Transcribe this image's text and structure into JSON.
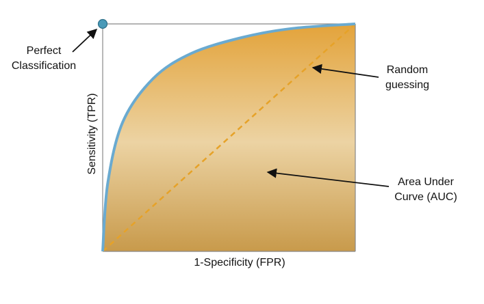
{
  "diagram": {
    "type": "roc-curve-illustration",
    "colors": {
      "area_top": "#e3a33a",
      "area_mid": "#ecd3a3",
      "area_bottom": "#c89a4b",
      "curve": "#6aaad0",
      "diagonal": "#e6a228",
      "perfect_point": "#4a9ab8",
      "frame": "#888888",
      "arrow": "#111111"
    },
    "perfect_point": {
      "fpr": 0,
      "tpr": 1
    },
    "curve": [
      [
        0,
        0
      ],
      [
        0.02,
        0.3
      ],
      [
        0.08,
        0.57
      ],
      [
        0.2,
        0.76
      ],
      [
        0.35,
        0.87
      ],
      [
        0.55,
        0.94
      ],
      [
        0.75,
        0.98
      ],
      [
        1,
        1
      ]
    ],
    "random_line": [
      [
        0,
        0
      ],
      [
        1,
        1
      ]
    ],
    "labels": {
      "perfect_line1": "Perfect",
      "perfect_line2": "Classification",
      "random_line1": "Random",
      "random_line2": "guessing",
      "auc_line1": "Area Under",
      "auc_line2": "Curve (AUC)",
      "x_axis": "1-Specificity (FPR)",
      "y_axis": "Sensitivity (TPR)"
    }
  }
}
